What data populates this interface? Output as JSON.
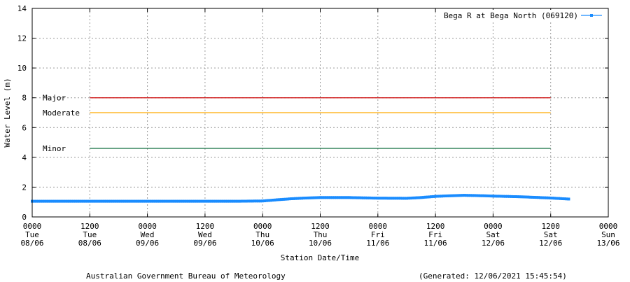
{
  "chart_data": {
    "type": "line",
    "title": "",
    "xlabel": "Station Date/Time",
    "ylabel": "Water Level (m)",
    "ylim": [
      0,
      14
    ],
    "yticks": [
      0,
      2,
      4,
      6,
      8,
      10,
      12,
      14
    ],
    "xlim": [
      "2021-06-08 00:00",
      "2021-06-13 00:00"
    ],
    "xticks": [
      {
        "time": "2021-06-08 00:00",
        "lines": [
          "0000",
          "Tue",
          "08/06"
        ]
      },
      {
        "time": "2021-06-08 12:00",
        "lines": [
          "1200",
          "Tue",
          "08/06"
        ]
      },
      {
        "time": "2021-06-09 00:00",
        "lines": [
          "0000",
          "Wed",
          "09/06"
        ]
      },
      {
        "time": "2021-06-09 12:00",
        "lines": [
          "1200",
          "Wed",
          "09/06"
        ]
      },
      {
        "time": "2021-06-10 00:00",
        "lines": [
          "0000",
          "Thu",
          "10/06"
        ]
      },
      {
        "time": "2021-06-10 12:00",
        "lines": [
          "1200",
          "Thu",
          "10/06"
        ]
      },
      {
        "time": "2021-06-11 00:00",
        "lines": [
          "0000",
          "Fri",
          "11/06"
        ]
      },
      {
        "time": "2021-06-11 12:00",
        "lines": [
          "1200",
          "Fri",
          "11/06"
        ]
      },
      {
        "time": "2021-06-12 00:00",
        "lines": [
          "0000",
          "Sat",
          "12/06"
        ]
      },
      {
        "time": "2021-06-12 12:00",
        "lines": [
          "1200",
          "Sat",
          "12/06"
        ]
      },
      {
        "time": "2021-06-13 00:00",
        "lines": [
          "0000",
          "Sun",
          "13/06"
        ]
      }
    ],
    "grid": true,
    "legend_position": "top-right",
    "thresholds": [
      {
        "label": "Major",
        "value": 8.0,
        "color": "#cc0000",
        "start": "2021-06-08 12:00",
        "end": "2021-06-12 12:00"
      },
      {
        "label": "Moderate",
        "value": 7.0,
        "color": "#ffaa00",
        "start": "2021-06-08 12:00",
        "end": "2021-06-12 12:00"
      },
      {
        "label": "Minor",
        "value": 4.6,
        "color": "#006633",
        "start": "2021-06-08 12:00",
        "end": "2021-06-12 12:00"
      }
    ],
    "series": [
      {
        "name": "Bega R at Bega North (069120)",
        "color": "#1a8cff",
        "points": [
          [
            "2021-06-08 00:00",
            1.05
          ],
          [
            "2021-06-08 06:00",
            1.05
          ],
          [
            "2021-06-08 12:00",
            1.05
          ],
          [
            "2021-06-08 18:00",
            1.05
          ],
          [
            "2021-06-09 00:00",
            1.05
          ],
          [
            "2021-06-09 06:00",
            1.05
          ],
          [
            "2021-06-09 12:00",
            1.05
          ],
          [
            "2021-06-09 18:00",
            1.05
          ],
          [
            "2021-06-10 00:00",
            1.07
          ],
          [
            "2021-06-10 03:00",
            1.15
          ],
          [
            "2021-06-10 06:00",
            1.22
          ],
          [
            "2021-06-10 09:00",
            1.27
          ],
          [
            "2021-06-10 12:00",
            1.3
          ],
          [
            "2021-06-10 18:00",
            1.3
          ],
          [
            "2021-06-11 00:00",
            1.26
          ],
          [
            "2021-06-11 06:00",
            1.25
          ],
          [
            "2021-06-11 09:00",
            1.3
          ],
          [
            "2021-06-11 12:00",
            1.38
          ],
          [
            "2021-06-11 15:00",
            1.42
          ],
          [
            "2021-06-11 18:00",
            1.45
          ],
          [
            "2021-06-11 21:00",
            1.43
          ],
          [
            "2021-06-12 00:00",
            1.4
          ],
          [
            "2021-06-12 06:00",
            1.35
          ],
          [
            "2021-06-12 12:00",
            1.27
          ],
          [
            "2021-06-12 15:45",
            1.2
          ]
        ]
      }
    ]
  },
  "footer": {
    "left": "Australian Government Bureau of Meteorology",
    "right": "(Generated: 12/06/2021 15:45:54)"
  }
}
